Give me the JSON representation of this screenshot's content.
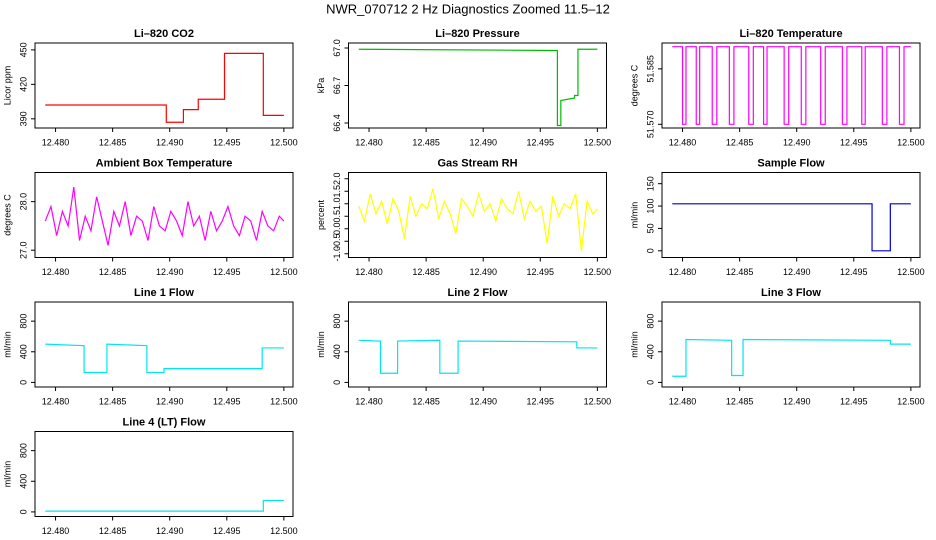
{
  "title": "NWR_070712  2 Hz Diagnostics Zoomed 11.5–12",
  "chart_data": [
    {
      "type": "line",
      "title": "Li–820 CO2",
      "y_label": "Licor ppm",
      "color": "#ff0000",
      "x": [
        12.4791,
        12.4897,
        12.4897,
        12.4912,
        12.4912,
        12.4925,
        12.4925,
        12.4948,
        12.4948,
        12.4982,
        12.4982,
        12.5
      ],
      "values": [
        402,
        402,
        387,
        387,
        398,
        398,
        407,
        407,
        447,
        447,
        393,
        393
      ],
      "xlim": [
        12.4782,
        12.5008
      ],
      "xticks": [
        {
          "value": 12.48,
          "label": "12.480"
        },
        12.485,
        {
          "value": 12.49,
          "label": "12.490"
        },
        12.495,
        {
          "value": 12.5,
          "label": "12.500"
        }
      ],
      "ylim": [
        382,
        456
      ],
      "yticks": [
        390,
        420,
        450
      ]
    },
    {
      "type": "line",
      "title": "Li–820 Pressure",
      "y_label": "kPa",
      "color": "#00bb00",
      "x": [
        12.4791,
        12.4965,
        12.4965,
        12.4968,
        12.4968,
        12.498,
        12.498,
        12.4983,
        12.4983,
        12.5
      ],
      "values": [
        66.99,
        66.98,
        66.38,
        66.38,
        66.58,
        66.6,
        66.62,
        66.62,
        66.99,
        66.99
      ],
      "xlim": [
        12.4782,
        12.5008
      ],
      "xticks": [
        {
          "value": 12.48,
          "label": "12.480"
        },
        12.485,
        {
          "value": 12.49,
          "label": "12.490"
        },
        12.495,
        {
          "value": 12.5,
          "label": "12.500"
        }
      ],
      "ylim": [
        66.36,
        67.04
      ],
      "yticks": [
        66.4,
        66.7,
        {
          "value": 67.0,
          "label": "67.0"
        }
      ]
    },
    {
      "type": "line",
      "title": "Li–820 Temperature",
      "y_label": "degrees C",
      "color": "#ff00ff",
      "x": [
        12.4791,
        12.48,
        12.48,
        12.4803,
        12.4803,
        12.4812,
        12.4812,
        12.4815,
        12.4815,
        12.4826,
        12.4826,
        12.483,
        12.483,
        12.4841,
        12.4841,
        12.4845,
        12.4845,
        12.4858,
        12.4858,
        12.4862,
        12.4862,
        12.4871,
        12.4871,
        12.4874,
        12.4874,
        12.4889,
        12.4889,
        12.4893,
        12.4893,
        12.4904,
        12.4904,
        12.4908,
        12.4908,
        12.4921,
        12.4921,
        12.4925,
        12.4925,
        12.494,
        12.494,
        12.4944,
        12.4944,
        12.4957,
        12.4957,
        12.496,
        12.496,
        12.4975,
        12.4975,
        12.4979,
        12.4979,
        12.499,
        12.499,
        12.4994,
        12.4994,
        12.5
      ],
      "values": [
        51.591,
        51.591,
        51.57,
        51.57,
        51.591,
        51.591,
        51.57,
        51.57,
        51.591,
        51.591,
        51.57,
        51.57,
        51.591,
        51.591,
        51.57,
        51.57,
        51.591,
        51.591,
        51.57,
        51.57,
        51.591,
        51.591,
        51.57,
        51.57,
        51.591,
        51.591,
        51.57,
        51.57,
        51.591,
        51.591,
        51.57,
        51.57,
        51.591,
        51.591,
        51.57,
        51.57,
        51.591,
        51.591,
        51.57,
        51.57,
        51.591,
        51.591,
        51.57,
        51.57,
        51.591,
        51.591,
        51.57,
        51.57,
        51.591,
        51.591,
        51.57,
        51.57,
        51.591,
        51.591
      ],
      "xlim": [
        12.4782,
        12.5008
      ],
      "xticks": [
        {
          "value": 12.48,
          "label": "12.480"
        },
        12.485,
        {
          "value": 12.49,
          "label": "12.490"
        },
        12.495,
        {
          "value": 12.5,
          "label": "12.500"
        }
      ],
      "ylim": [
        51.569,
        51.592
      ],
      "yticks": [
        {
          "value": 51.57,
          "label": "51.570"
        },
        51.585
      ]
    },
    {
      "type": "line",
      "title": "Ambient Box Temperature",
      "y_label": "degrees C",
      "color": "#ff00ff",
      "x": [
        12.4791,
        12.4796,
        12.4801,
        12.4806,
        12.4811,
        12.4816,
        12.4821,
        12.4826,
        12.4831,
        12.4836,
        12.4841,
        12.4846,
        12.4851,
        12.4856,
        12.4861,
        12.4866,
        12.4871,
        12.4876,
        12.4881,
        12.4886,
        12.4891,
        12.4896,
        12.4901,
        12.4906,
        12.4911,
        12.4916,
        12.4921,
        12.4926,
        12.4931,
        12.4936,
        12.4941,
        12.4946,
        12.4951,
        12.4956,
        12.4961,
        12.4966,
        12.4971,
        12.4976,
        12.4981,
        12.4986,
        12.4991,
        12.4996,
        12.5
      ],
      "values": [
        27.6,
        27.9,
        27.3,
        27.8,
        27.5,
        28.3,
        27.2,
        27.7,
        27.4,
        28.1,
        27.6,
        27.1,
        27.8,
        27.5,
        28.0,
        27.3,
        27.7,
        27.6,
        27.2,
        27.9,
        27.5,
        27.4,
        27.8,
        27.6,
        27.3,
        28.0,
        27.5,
        27.7,
        27.2,
        27.8,
        27.4,
        27.6,
        27.9,
        27.5,
        27.3,
        27.7,
        27.6,
        27.2,
        27.8,
        27.5,
        27.4,
        27.7,
        27.6
      ],
      "xlim": [
        12.4782,
        12.5008
      ],
      "xticks": [
        {
          "value": 12.48,
          "label": "12.480"
        },
        12.485,
        {
          "value": 12.49,
          "label": "12.490"
        },
        12.495,
        {
          "value": 12.5,
          "label": "12.500"
        }
      ],
      "ylim": [
        26.85,
        28.6
      ],
      "yticks": [
        {
          "value": 27.0,
          "label": "27.0"
        },
        {
          "value": 28.0,
          "label": "28.0"
        }
      ]
    },
    {
      "type": "line",
      "title": "Gas Stream RH",
      "y_label": "percent",
      "color": "#ffff00",
      "x": [
        12.4791,
        12.4796,
        12.4801,
        12.4806,
        12.4811,
        12.4816,
        12.4821,
        12.4826,
        12.4831,
        12.4836,
        12.4841,
        12.4846,
        12.4851,
        12.4856,
        12.4861,
        12.4866,
        12.4871,
        12.4876,
        12.4881,
        12.4886,
        12.4891,
        12.4896,
        12.4901,
        12.4906,
        12.4911,
        12.4916,
        12.4921,
        12.4926,
        12.4931,
        12.4936,
        12.4941,
        12.4946,
        12.4951,
        12.4956,
        12.4961,
        12.4966,
        12.4971,
        12.4976,
        12.4981,
        12.4986,
        12.4991,
        12.4996,
        12.5
      ],
      "values": [
        0.9,
        0.3,
        1.4,
        0.6,
        1.1,
        0.2,
        1.2,
        0.7,
        -0.4,
        1.3,
        0.5,
        1.0,
        0.8,
        1.6,
        0.4,
        1.1,
        0.6,
        -0.2,
        1.2,
        0.9,
        0.5,
        1.4,
        0.7,
        1.0,
        0.3,
        1.2,
        0.8,
        0.6,
        1.5,
        0.4,
        1.1,
        0.7,
        0.9,
        -0.6,
        1.3,
        0.5,
        1.0,
        0.8,
        1.4,
        -0.9,
        1.1,
        0.6,
        0.8
      ],
      "xlim": [
        12.4782,
        12.5008
      ],
      "xticks": [
        {
          "value": 12.48,
          "label": "12.480"
        },
        12.485,
        {
          "value": 12.49,
          "label": "12.490"
        },
        12.495,
        {
          "value": 12.5,
          "label": "12.500"
        }
      ],
      "ylim": [
        -1.15,
        2.25
      ],
      "yticks": [
        {
          "value": -1.0,
          "label": "-1.0"
        },
        -0.5,
        {
          "value": 0.0,
          "label": "0.0"
        },
        0.5,
        {
          "value": 1.0,
          "label": "1.0"
        },
        1.5,
        {
          "value": 2.0,
          "label": "2.0"
        }
      ]
    },
    {
      "type": "line",
      "title": "Sample Flow",
      "y_label": "ml/min",
      "color": "#0000cc",
      "x": [
        12.4791,
        12.4966,
        12.4966,
        12.4982,
        12.4982,
        12.5
      ],
      "values": [
        105,
        105,
        0,
        0,
        105,
        105
      ],
      "xlim": [
        12.4782,
        12.5008
      ],
      "xticks": [
        {
          "value": 12.48,
          "label": "12.480"
        },
        12.485,
        {
          "value": 12.49,
          "label": "12.490"
        },
        12.495,
        {
          "value": 12.5,
          "label": "12.500"
        }
      ],
      "ylim": [
        -15,
        175
      ],
      "yticks": [
        0,
        50,
        100,
        150
      ]
    },
    {
      "type": "line",
      "title": "Line 1 Flow",
      "y_label": "ml/min",
      "color": "#00e5ee",
      "x": [
        12.4791,
        12.4825,
        12.4825,
        12.4845,
        12.4845,
        12.488,
        12.488,
        12.4895,
        12.4895,
        12.4981,
        12.4981,
        12.5
      ],
      "values": [
        500,
        480,
        130,
        130,
        500,
        480,
        130,
        130,
        180,
        180,
        450,
        450
      ],
      "xlim": [
        12.4782,
        12.5008
      ],
      "xticks": [
        {
          "value": 12.48,
          "label": "12.480"
        },
        12.485,
        {
          "value": 12.49,
          "label": "12.490"
        },
        12.495,
        {
          "value": 12.5,
          "label": "12.500"
        }
      ],
      "ylim": [
        -60,
        1050
      ],
      "yticks": [
        0,
        400,
        800
      ]
    },
    {
      "type": "line",
      "title": "Line 2 Flow",
      "y_label": "ml/min",
      "color": "#00e5ee",
      "x": [
        12.4791,
        12.481,
        12.481,
        12.4825,
        12.4825,
        12.4862,
        12.4862,
        12.4878,
        12.4878,
        12.4982,
        12.4982,
        12.5
      ],
      "values": [
        550,
        540,
        120,
        120,
        540,
        550,
        120,
        120,
        540,
        530,
        450,
        450
      ],
      "xlim": [
        12.4782,
        12.5008
      ],
      "xticks": [
        {
          "value": 12.48,
          "label": "12.480"
        },
        12.485,
        {
          "value": 12.49,
          "label": "12.490"
        },
        12.495,
        {
          "value": 12.5,
          "label": "12.500"
        }
      ],
      "ylim": [
        -60,
        1050
      ],
      "yticks": [
        0,
        400,
        800
      ]
    },
    {
      "type": "line",
      "title": "Line 3 Flow",
      "y_label": "ml/min",
      "color": "#00e5ee",
      "x": [
        12.4791,
        12.4803,
        12.4803,
        12.4843,
        12.4843,
        12.4853,
        12.4853,
        12.4982,
        12.4982,
        12.5
      ],
      "values": [
        80,
        80,
        560,
        550,
        90,
        90,
        560,
        550,
        500,
        500
      ],
      "xlim": [
        12.4782,
        12.5008
      ],
      "xticks": [
        {
          "value": 12.48,
          "label": "12.480"
        },
        12.485,
        {
          "value": 12.49,
          "label": "12.490"
        },
        12.495,
        {
          "value": 12.5,
          "label": "12.500"
        }
      ],
      "ylim": [
        -60,
        1050
      ],
      "yticks": [
        0,
        400,
        800
      ]
    },
    {
      "type": "line",
      "title": "Line 4 (LT) Flow",
      "y_label": "ml/min",
      "color": "#00e5ee",
      "x": [
        12.4791,
        12.4982,
        12.4982,
        12.5
      ],
      "values": [
        10,
        10,
        150,
        150
      ],
      "xlim": [
        12.4782,
        12.5008
      ],
      "xticks": [
        {
          "value": 12.48,
          "label": "12.480"
        },
        12.485,
        {
          "value": 12.49,
          "label": "12.490"
        },
        12.495,
        {
          "value": 12.5,
          "label": "12.500"
        }
      ],
      "ylim": [
        -60,
        1050
      ],
      "yticks": [
        0,
        400,
        800
      ]
    }
  ]
}
